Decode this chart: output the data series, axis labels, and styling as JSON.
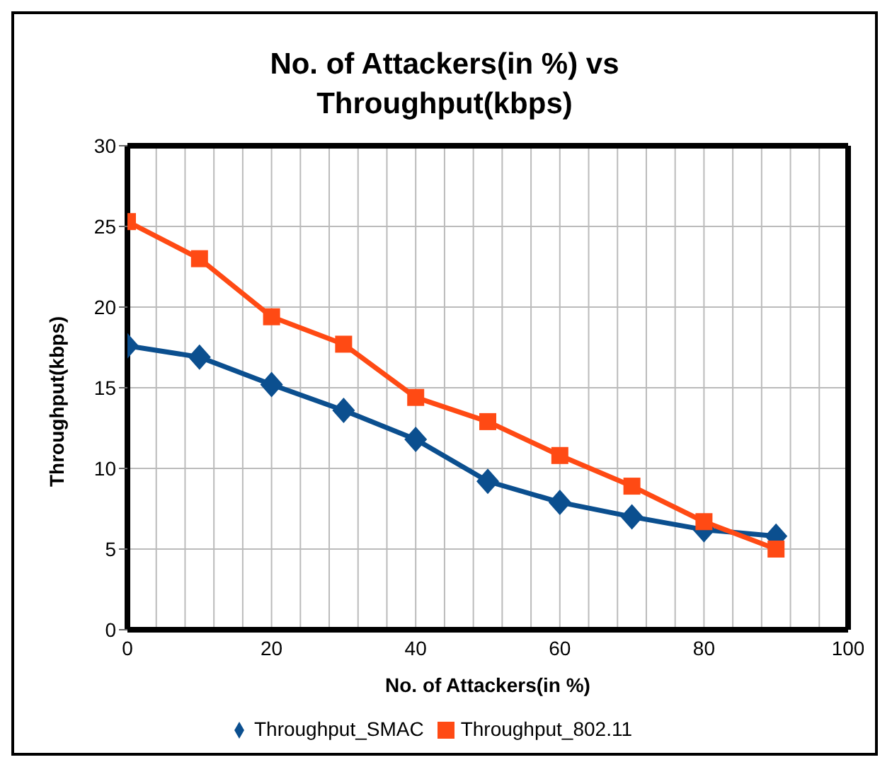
{
  "chart_data": {
    "type": "line",
    "title": "No. of Attackers(in %) vs Throughput(kbps)",
    "xlabel": "No. of Attackers(in %)",
    "ylabel": "Throughput(kbps)",
    "x": [
      0,
      10,
      20,
      30,
      40,
      50,
      60,
      70,
      80,
      90
    ],
    "series": [
      {
        "name": "Throughput_SMAC",
        "color": "#0b4f8f",
        "marker": "diamond",
        "values": [
          17.6,
          16.9,
          15.2,
          13.6,
          11.8,
          9.2,
          7.9,
          7.0,
          6.2,
          5.8
        ]
      },
      {
        "name": "Throughput_802.11",
        "color": "#ff4a14",
        "marker": "square",
        "values": [
          25.3,
          23.0,
          19.4,
          17.7,
          14.4,
          12.9,
          10.8,
          8.9,
          6.7,
          5.0
        ]
      }
    ],
    "xlim": [
      0,
      100
    ],
    "xticks": [
      0,
      {
        "value": 4,
        "label": null
      },
      {
        "value": 8,
        "label": null
      },
      {
        "value": 12,
        "label": null
      },
      {
        "value": 16,
        "label": null
      },
      20,
      {
        "value": 24,
        "label": null
      },
      {
        "value": 28,
        "label": null
      },
      {
        "value": 32,
        "label": null
      },
      {
        "value": 36,
        "label": null
      },
      40,
      {
        "value": 44,
        "label": null
      },
      {
        "value": 48,
        "label": null
      },
      {
        "value": 52,
        "label": null
      },
      {
        "value": 56,
        "label": null
      },
      60,
      {
        "value": 64,
        "label": null
      },
      {
        "value": 68,
        "label": null
      },
      {
        "value": 72,
        "label": null
      },
      {
        "value": 76,
        "label": null
      },
      80,
      {
        "value": 84,
        "label": null
      },
      {
        "value": 88,
        "label": null
      },
      {
        "value": 92,
        "label": null
      },
      {
        "value": 96,
        "label": null
      },
      100
    ],
    "ylim": [
      0,
      30
    ],
    "yticks": [
      0,
      5,
      10,
      15,
      20,
      25,
      30
    ],
    "grid": true,
    "legend": "bottom",
    "line_style": "solid"
  }
}
